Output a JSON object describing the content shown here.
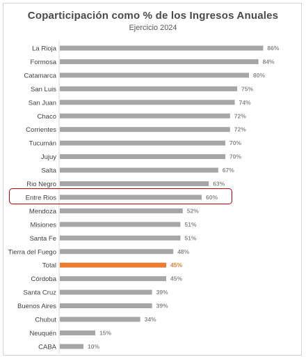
{
  "title": "Coparticipación como % de los Ingresos Anuales",
  "subtitle": "Ejercicio 2024",
  "colors": {
    "bar": "#a6a6a6",
    "highlight_bar": "#ed7d31",
    "highlight_border": "#c00000"
  },
  "chart_data": {
    "type": "bar",
    "orientation": "horizontal",
    "title": "Coparticipación como % de los Ingresos Anuales",
    "subtitle": "Ejercicio 2024",
    "categories": [
      "La Rioja",
      "Formosa",
      "Catamarca",
      "San Luis",
      "San Juan",
      "Chaco",
      "Corrientes",
      "Tucumán",
      "Jujuy",
      "Salta",
      "Rio Negro",
      "Entre Rios",
      "Mendoza",
      "Misiones",
      "Santa Fe",
      "Tierra del Fuego",
      "Total",
      "Córdoba",
      "Santa Cruz",
      "Buenos Aires",
      "Chubut",
      "Neuquén",
      "CABA"
    ],
    "values": [
      86,
      84,
      80,
      75,
      74,
      72,
      72,
      70,
      70,
      67,
      63,
      60,
      52,
      51,
      51,
      48,
      45,
      45,
      39,
      39,
      34,
      15,
      10
    ],
    "value_labels": [
      "86%",
      "84%",
      "80%",
      "75%",
      "74%",
      "72%",
      "72%",
      "70%",
      "70%",
      "67%",
      "63%",
      "60%",
      "52%",
      "51%",
      "51%",
      "48%",
      "45%",
      "45%",
      "39%",
      "39%",
      "34%",
      "15%",
      "10%"
    ],
    "highlighted_bar": "Total",
    "boxed_category": "Entre Rios",
    "xlim": [
      0,
      100
    ],
    "grid": false,
    "legend": "none"
  }
}
